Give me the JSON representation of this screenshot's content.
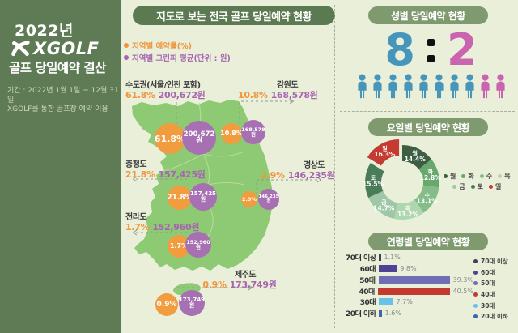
{
  "sidebar": {
    "year": "2022년",
    "brand": "XGOLF",
    "title": "골프 당일예약 결산",
    "period_line1": "기간 : 2022년 1월 1일 ~ 12월 31일",
    "period_line2": "XGOLF를 통한 골프장 예약 이용"
  },
  "map_section": {
    "title": "지도로 보는 전국 골프 당일예약 현황",
    "legend": [
      {
        "label": "지역별 예약률(%)",
        "color": "#f0953c"
      },
      {
        "label": "지역별 그린피 평균(단위 : 원)",
        "color": "#a765b0"
      }
    ],
    "regions": [
      {
        "id": "sudogwon",
        "name": "수도권(서울/인천 포함)",
        "rate": "61.8%",
        "fee": "200,672원"
      },
      {
        "id": "gangwon",
        "name": "강원도",
        "rate": "10.8%",
        "fee": "168,578원"
      },
      {
        "id": "chungcheong",
        "name": "충청도",
        "rate": "21.8%",
        "fee": "157,425원"
      },
      {
        "id": "gyeongsang",
        "name": "경상도",
        "rate": "2.9%",
        "fee": "146,235원"
      },
      {
        "id": "jeolla",
        "name": "전라도",
        "rate": "1.7%",
        "fee": "152,960원"
      },
      {
        "id": "jeju",
        "name": "제주도",
        "rate": "0.9%",
        "fee": "173,749원"
      }
    ]
  },
  "gender_section": {
    "title": "성별 당일예약 현황",
    "male_value": "8",
    "separator": ":",
    "female_value": "2",
    "male_color": "#4596ba",
    "female_color": "#ca63b0",
    "male_count": 8,
    "female_count": 2
  },
  "weekday_section": {
    "title": "요일별 당일예약 현황"
  },
  "age_section": {
    "title": "연령별 당일예약 현황"
  },
  "chart_data": [
    {
      "id": "region-map",
      "type": "map-bubble",
      "title": "지도로 보는 전국 골프 당일예약 현황",
      "categories": [
        "수도권(서울/인천 포함)",
        "강원도",
        "충청도",
        "경상도",
        "전라도",
        "제주도"
      ],
      "series": [
        {
          "name": "지역별 예약률(%)",
          "values": [
            61.8,
            10.8,
            21.8,
            2.9,
            1.7,
            0.9
          ]
        },
        {
          "name": "지역별 그린피 평균(단위 : 원)",
          "values": [
            200672,
            168578,
            157425,
            146235,
            152960,
            173749
          ]
        }
      ]
    },
    {
      "id": "weekday-donut",
      "type": "pie",
      "title": "요일별 당일예약 현황",
      "labels": [
        "월",
        "화",
        "수",
        "목",
        "금",
        "토",
        "일"
      ],
      "values": [
        14.4,
        12.8,
        13.1,
        13.2,
        14.7,
        15.5,
        16.3
      ],
      "value_labels": [
        "14.4%",
        "12.8%",
        "13.1%",
        "13.2%",
        "14.7%",
        "15.5%",
        "16.3%"
      ],
      "colors": [
        "#3d5e43",
        "#68a86d",
        "#85bd88",
        "#aed7b0",
        "#9ec7a7",
        "#4a7c57",
        "#c43b31"
      ],
      "exploded_index": 6,
      "legend_rows": [
        [
          "월",
          "화",
          "수",
          "목"
        ],
        [
          "금",
          "토",
          "일"
        ]
      ],
      "legend_position": "right"
    },
    {
      "id": "age-bars",
      "type": "bar",
      "title": "연령별 당일예약 현황",
      "categories": [
        "70대 이상",
        "60대",
        "50대",
        "40대",
        "30대",
        "20대 이하"
      ],
      "values": [
        1.1,
        9.8,
        39.3,
        40.5,
        7.7,
        1.6
      ],
      "value_labels": [
        "1.1%",
        "9.8%",
        "39.3%",
        "40.5%",
        "7.7%",
        "1.6%"
      ],
      "colors": [
        "#3a4557",
        "#4e4393",
        "#6f6db6",
        "#c23a30",
        "#66c2ea",
        "#3e64b0"
      ],
      "xlim": [
        0,
        45
      ],
      "legend_position": "right"
    }
  ]
}
